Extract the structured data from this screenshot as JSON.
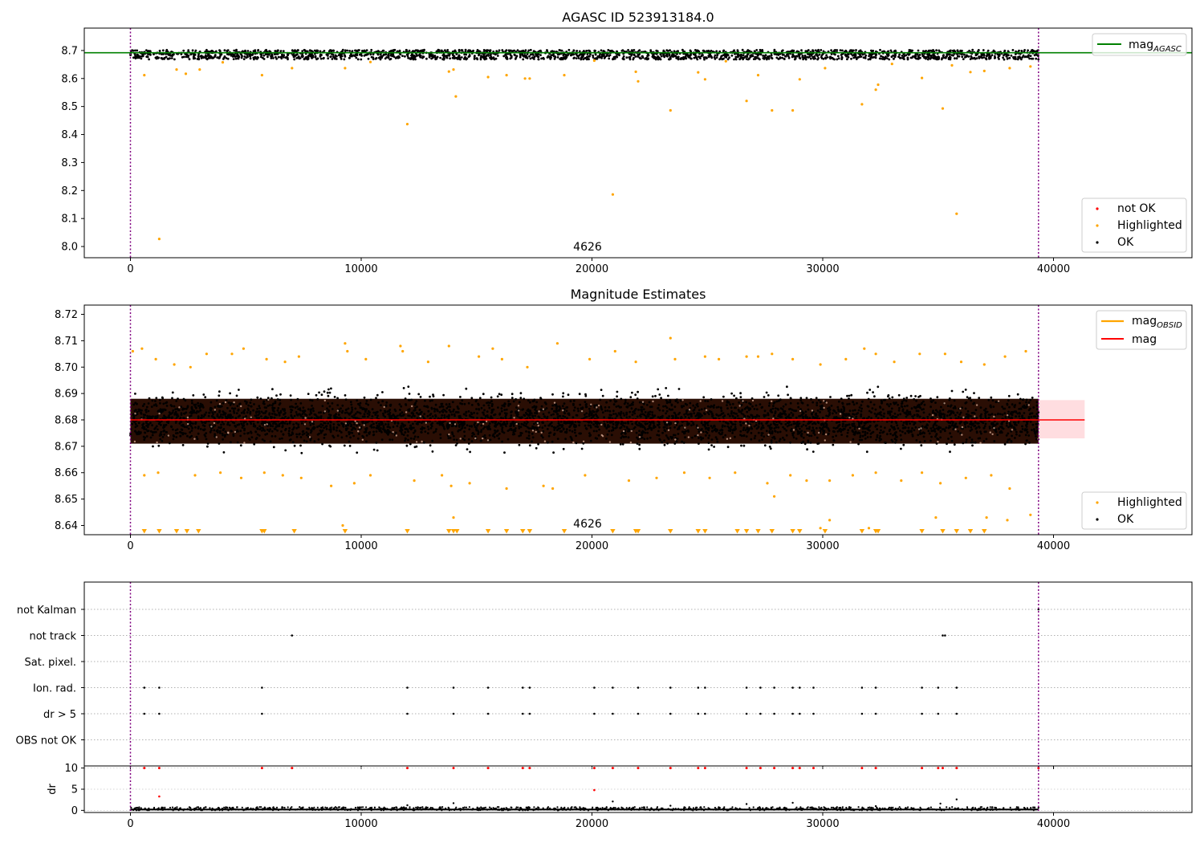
{
  "chart_data": [
    {
      "type": "scatter",
      "title": "AGASC ID 523913184.0",
      "xlabel": "",
      "ylabel": "",
      "xlim": [
        -2000,
        46000
      ],
      "ylim": [
        7.96,
        8.78
      ],
      "xticks": [
        0,
        10000,
        20000,
        30000,
        40000
      ],
      "yticks": [
        8.0,
        8.1,
        8.2,
        8.3,
        8.4,
        8.5,
        8.6,
        8.7
      ],
      "ytick_labels": [
        "8.0",
        "8.1",
        "8.2",
        "8.3",
        "8.4",
        "8.5",
        "8.6",
        "8.7"
      ],
      "annotation": {
        "text": "4626",
        "x": 19700,
        "y": 8.0
      },
      "vlines": [
        0,
        39350
      ],
      "hlines": [
        {
          "name": "magAGASC",
          "y": 8.692,
          "color": "#008000"
        }
      ],
      "legend_top": [
        {
          "label_main": "mag",
          "label_sub": "AGASC",
          "color": "#008000"
        }
      ],
      "legend_bottom": [
        {
          "label": "not OK",
          "color": "#ff0000"
        },
        {
          "label": "Highlighted",
          "color": "#ffa500"
        },
        {
          "label": "OK",
          "color": "#000000"
        }
      ],
      "ok_band": {
        "x": [
          0,
          39350
        ],
        "y": [
          8.668,
          8.702
        ]
      },
      "highlighted": [
        [
          1250,
          8.027
        ],
        [
          20900,
          8.186
        ],
        [
          35800,
          8.117
        ],
        [
          12000,
          8.437
        ],
        [
          14100,
          8.536
        ],
        [
          23400,
          8.486
        ],
        [
          27800,
          8.486
        ],
        [
          28700,
          8.486
        ],
        [
          31700,
          8.508
        ],
        [
          35200,
          8.493
        ],
        [
          26700,
          8.52
        ],
        [
          32300,
          8.56
        ],
        [
          32400,
          8.578
        ],
        [
          600,
          8.612
        ],
        [
          5700,
          8.612
        ],
        [
          15500,
          8.605
        ],
        [
          16300,
          8.612
        ],
        [
          17100,
          8.6
        ],
        [
          17300,
          8.6
        ],
        [
          18800,
          8.612
        ],
        [
          22000,
          8.59
        ],
        [
          24900,
          8.597
        ],
        [
          27200,
          8.612
        ],
        [
          29000,
          8.597
        ],
        [
          34300,
          8.602
        ],
        [
          36400,
          8.623
        ],
        [
          37000,
          8.627
        ],
        [
          2000,
          8.632
        ],
        [
          2400,
          8.617
        ],
        [
          3000,
          8.632
        ],
        [
          9300,
          8.637
        ],
        [
          13800,
          8.625
        ],
        [
          21900,
          8.624
        ],
        [
          24600,
          8.622
        ],
        [
          30100,
          8.637
        ],
        [
          38100,
          8.637
        ],
        [
          39000,
          8.643
        ],
        [
          7000,
          8.637
        ],
        [
          14000,
          8.632
        ],
        [
          33000,
          8.652
        ],
        [
          4000,
          8.658
        ],
        [
          10400,
          8.659
        ],
        [
          20100,
          8.664
        ],
        [
          25800,
          8.662
        ],
        [
          35600,
          8.647
        ]
      ]
    },
    {
      "type": "scatter",
      "title": "Magnitude Estimates",
      "xlabel": "",
      "ylabel": "",
      "xlim": [
        -2000,
        46000
      ],
      "ylim": [
        8.6365,
        8.7235
      ],
      "xticks": [
        0,
        10000,
        20000,
        30000,
        40000
      ],
      "yticks": [
        8.64,
        8.65,
        8.66,
        8.67,
        8.68,
        8.69,
        8.7,
        8.71,
        8.72
      ],
      "ytick_labels": [
        "8.64",
        "8.65",
        "8.66",
        "8.67",
        "8.68",
        "8.69",
        "8.70",
        "8.71",
        "8.72"
      ],
      "annotation": {
        "text": "4626",
        "x": 19700,
        "y": 8.64
      },
      "vlines": [
        0,
        39350
      ],
      "mag": 8.68,
      "mag_band": [
        8.673,
        8.6875
      ],
      "legend_top": [
        {
          "label_main": "mag",
          "label_sub": "OBSID",
          "color": "#ffa500"
        },
        {
          "label_main": "mag",
          "label_sub": "",
          "color": "#ff0000"
        }
      ],
      "legend_bottom": [
        {
          "label": "Highlighted",
          "color": "#ffa500"
        },
        {
          "label": "OK",
          "color": "#000000"
        }
      ],
      "ok_band": {
        "x": [
          0,
          39350
        ],
        "y": [
          8.66,
          8.7
        ]
      },
      "dense_band": {
        "x": [
          0,
          39350
        ],
        "y": [
          8.671,
          8.688
        ]
      },
      "highlighted": [
        [
          100,
          8.706
        ],
        [
          500,
          8.707
        ],
        [
          1100,
          8.703
        ],
        [
          1900,
          8.701
        ],
        [
          2600,
          8.7
        ],
        [
          3300,
          8.705
        ],
        [
          4400,
          8.705
        ],
        [
          4900,
          8.707
        ],
        [
          5900,
          8.703
        ],
        [
          6700,
          8.702
        ],
        [
          7300,
          8.704
        ],
        [
          9300,
          8.709
        ],
        [
          9400,
          8.706
        ],
        [
          10200,
          8.703
        ],
        [
          11700,
          8.708
        ],
        [
          11800,
          8.706
        ],
        [
          12900,
          8.702
        ],
        [
          13800,
          8.708
        ],
        [
          15100,
          8.704
        ],
        [
          15700,
          8.707
        ],
        [
          16100,
          8.703
        ],
        [
          17200,
          8.7
        ],
        [
          18500,
          8.709
        ],
        [
          19900,
          8.703
        ],
        [
          21000,
          8.706
        ],
        [
          21900,
          8.702
        ],
        [
          23400,
          8.711
        ],
        [
          23600,
          8.703
        ],
        [
          24900,
          8.704
        ],
        [
          25500,
          8.703
        ],
        [
          26700,
          8.704
        ],
        [
          27200,
          8.704
        ],
        [
          27800,
          8.705
        ],
        [
          28700,
          8.703
        ],
        [
          29900,
          8.701
        ],
        [
          31000,
          8.703
        ],
        [
          31800,
          8.707
        ],
        [
          32300,
          8.705
        ],
        [
          33100,
          8.702
        ],
        [
          34200,
          8.705
        ],
        [
          35300,
          8.705
        ],
        [
          36000,
          8.702
        ],
        [
          37000,
          8.701
        ],
        [
          37900,
          8.704
        ],
        [
          38800,
          8.706
        ],
        [
          600,
          8.659
        ],
        [
          1200,
          8.66
        ],
        [
          2800,
          8.659
        ],
        [
          3900,
          8.66
        ],
        [
          4800,
          8.658
        ],
        [
          5800,
          8.66
        ],
        [
          6600,
          8.659
        ],
        [
          7400,
          8.658
        ],
        [
          8700,
          8.655
        ],
        [
          9700,
          8.656
        ],
        [
          10400,
          8.659
        ],
        [
          12300,
          8.657
        ],
        [
          13500,
          8.659
        ],
        [
          13900,
          8.655
        ],
        [
          14700,
          8.656
        ],
        [
          16300,
          8.654
        ],
        [
          17900,
          8.655
        ],
        [
          18300,
          8.654
        ],
        [
          19700,
          8.659
        ],
        [
          21600,
          8.657
        ],
        [
          22800,
          8.658
        ],
        [
          24000,
          8.66
        ],
        [
          25100,
          8.658
        ],
        [
          26200,
          8.66
        ],
        [
          27600,
          8.656
        ],
        [
          28600,
          8.659
        ],
        [
          29300,
          8.657
        ],
        [
          30300,
          8.657
        ],
        [
          31300,
          8.659
        ],
        [
          32300,
          8.66
        ],
        [
          33400,
          8.657
        ],
        [
          34300,
          8.66
        ],
        [
          35100,
          8.656
        ],
        [
          36200,
          8.658
        ],
        [
          37300,
          8.659
        ],
        [
          38100,
          8.654
        ],
        [
          27900,
          8.651
        ],
        [
          14000,
          8.643
        ],
        [
          34900,
          8.643
        ],
        [
          37100,
          8.643
        ],
        [
          39000,
          8.644
        ],
        [
          38000,
          8.642
        ],
        [
          9200,
          8.64
        ],
        [
          29900,
          8.639
        ],
        [
          30300,
          8.642
        ],
        [
          32000,
          8.639
        ]
      ],
      "clipped_low": [
        600,
        1250,
        2000,
        2450,
        2950,
        5700,
        5800,
        7100,
        9300,
        12000,
        13800,
        14000,
        14150,
        15500,
        16300,
        17000,
        17300,
        18800,
        20900,
        21900,
        22000,
        23400,
        24600,
        24900,
        26300,
        26700,
        27200,
        27800,
        28700,
        29000,
        30100,
        31700,
        32300,
        32400,
        34300,
        35200,
        35800,
        36400,
        37000
      ]
    },
    {
      "type": "scatter",
      "title": "",
      "xlabel": "",
      "ylabel": "",
      "xlim": [
        -2000,
        46000
      ],
      "xticks": [
        0,
        10000,
        20000,
        30000,
        40000
      ],
      "categories": [
        "not Kalman",
        "not track",
        "Sat. pixel.",
        "Ion. rad.",
        "dr > 5",
        "OBS not OK"
      ],
      "vlines": [
        0,
        39350
      ],
      "flags": {
        "not Kalman": [
          39350
        ],
        "not track": [
          7000,
          35200,
          35300
        ],
        "Sat. pixel.": [],
        "Ion. rad.": [
          600,
          1250,
          5700,
          12000,
          14000,
          15500,
          17000,
          17300,
          20100,
          20900,
          22000,
          23400,
          24600,
          24900,
          26700,
          27300,
          27900,
          28700,
          29000,
          29600,
          31700,
          32300,
          34300,
          35000,
          35800
        ],
        "dr > 5": [
          600,
          1250,
          5700,
          12000,
          14000,
          15500,
          17000,
          17300,
          20100,
          20900,
          22000,
          23400,
          24600,
          24900,
          26700,
          27300,
          27900,
          28700,
          29000,
          29600,
          31700,
          32300,
          34300,
          35000,
          35800
        ],
        "OBS not OK": []
      }
    },
    {
      "type": "scatter",
      "title": "",
      "xlabel": "",
      "ylabel": "dr",
      "xlim": [
        -2000,
        46000
      ],
      "ylim": [
        -0.5,
        10.5
      ],
      "xticks": [
        0,
        10000,
        20000,
        30000,
        40000
      ],
      "xtick_labels": [
        "0",
        "10000",
        "20000",
        "30000",
        "40000"
      ],
      "yticks": [
        0,
        5,
        10
      ],
      "ytick_labels": [
        "0",
        "5",
        "10"
      ],
      "vlines": [
        0,
        39350
      ],
      "not_ok_at_10": [
        600,
        1250,
        5700,
        7000,
        12000,
        14000,
        15500,
        17000,
        17300,
        20100,
        20900,
        22000,
        23400,
        24600,
        24900,
        26700,
        27300,
        27900,
        28700,
        29000,
        29600,
        31700,
        32300,
        34300,
        35000,
        35200,
        35800,
        39350
      ],
      "not_ok_other": [
        [
          1250,
          3.3
        ],
        [
          20100,
          4.8
        ]
      ],
      "ok_other": [
        [
          14000,
          1.7
        ],
        [
          20900,
          2.1
        ],
        [
          28700,
          1.8
        ],
        [
          35800,
          2.6
        ],
        [
          12000,
          1.2
        ],
        [
          23400,
          1.1
        ],
        [
          26700,
          1.5
        ],
        [
          32300,
          1.0
        ],
        [
          35100,
          1.6
        ]
      ],
      "ok_band": {
        "x": [
          0,
          39350
        ],
        "y": [
          0.0,
          0.8
        ]
      }
    }
  ]
}
